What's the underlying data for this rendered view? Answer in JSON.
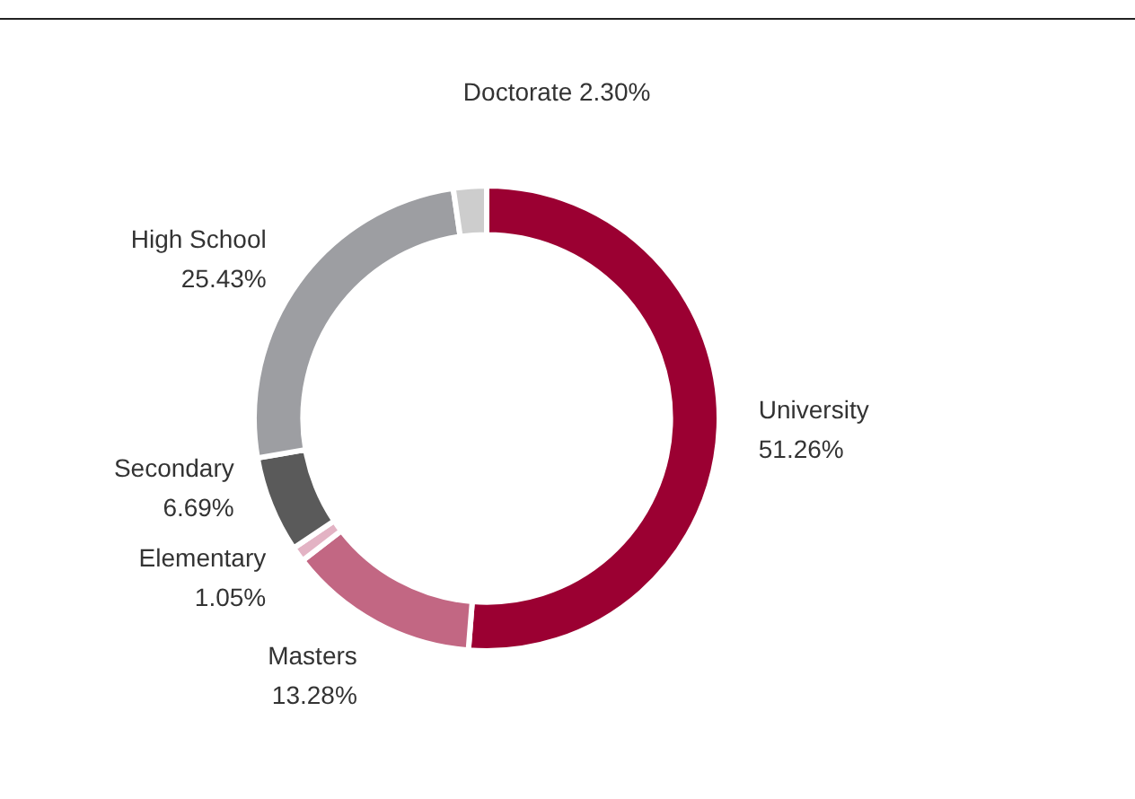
{
  "chart_data": {
    "type": "donut",
    "categories": [
      "University",
      "Masters",
      "Elementary",
      "Secondary",
      "High School",
      "Doctorate"
    ],
    "values": [
      51.26,
      13.28,
      1.05,
      6.69,
      25.43,
      2.3
    ],
    "value_labels": [
      "51.26%",
      "13.28%",
      "1.05%",
      "6.69%",
      "25.43%",
      "2.30%"
    ],
    "colors": [
      "#9b0032",
      "#c26783",
      "#e3b3c4",
      "#5a5a5a",
      "#9d9ea2",
      "#cdcdcd"
    ],
    "legend": false
  }
}
